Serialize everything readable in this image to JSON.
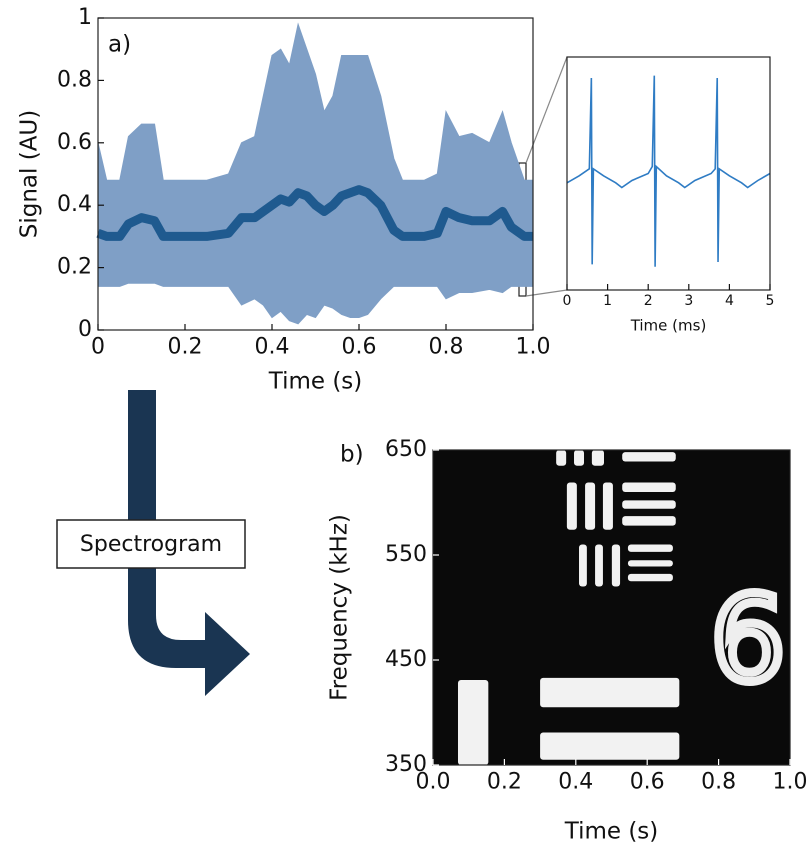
{
  "chart_data": [
    {
      "type": "area",
      "annotation": "a)",
      "xlabel": "Time (s)",
      "ylabel": "Signal (AU)",
      "color": "#1f5a8f",
      "band_color": "#7f9fc6",
      "x": [
        0,
        0.02,
        0.05,
        0.07,
        0.1,
        0.13,
        0.15,
        0.2,
        0.25,
        0.3,
        0.33,
        0.36,
        0.38,
        0.4,
        0.42,
        0.44,
        0.46,
        0.48,
        0.5,
        0.52,
        0.54,
        0.56,
        0.58,
        0.6,
        0.62,
        0.65,
        0.68,
        0.7,
        0.75,
        0.78,
        0.8,
        0.83,
        0.86,
        0.9,
        0.93,
        0.95,
        0.98,
        1.0
      ],
      "upper_values": [
        0.6,
        0.48,
        0.48,
        0.62,
        0.66,
        0.66,
        0.48,
        0.48,
        0.48,
        0.5,
        0.6,
        0.62,
        0.75,
        0.88,
        0.9,
        0.85,
        0.98,
        0.9,
        0.82,
        0.7,
        0.75,
        0.88,
        0.88,
        0.88,
        0.88,
        0.75,
        0.55,
        0.48,
        0.48,
        0.5,
        0.7,
        0.62,
        0.63,
        0.6,
        0.7,
        0.6,
        0.48,
        0.48
      ],
      "lower_values": [
        0.14,
        0.14,
        0.14,
        0.15,
        0.15,
        0.15,
        0.14,
        0.14,
        0.14,
        0.14,
        0.08,
        0.1,
        0.08,
        0.04,
        0.06,
        0.03,
        0.02,
        0.05,
        0.04,
        0.08,
        0.07,
        0.05,
        0.04,
        0.04,
        0.05,
        0.1,
        0.14,
        0.14,
        0.14,
        0.14,
        0.1,
        0.12,
        0.12,
        0.13,
        0.12,
        0.14,
        0.14,
        0.14
      ],
      "values": [
        0.31,
        0.3,
        0.3,
        0.34,
        0.36,
        0.35,
        0.3,
        0.3,
        0.3,
        0.31,
        0.36,
        0.36,
        0.38,
        0.4,
        0.42,
        0.41,
        0.44,
        0.43,
        0.4,
        0.38,
        0.4,
        0.43,
        0.44,
        0.45,
        0.44,
        0.4,
        0.32,
        0.3,
        0.3,
        0.31,
        0.38,
        0.36,
        0.35,
        0.35,
        0.38,
        0.33,
        0.3,
        0.3
      ],
      "xlim": [
        0,
        1
      ],
      "xticks": [
        0,
        0.2,
        0.4,
        0.6,
        0.8,
        {
          "value": 1,
          "label": "1.0"
        }
      ],
      "ylim": [
        0,
        1
      ],
      "yticks": [
        0,
        0.2,
        0.4,
        0.6,
        0.8,
        1
      ]
    },
    {
      "type": "line",
      "xlabel": "Time (ms)",
      "color": "#2f7cc4",
      "x": [
        0,
        0.3,
        0.55,
        0.6,
        0.62,
        0.65,
        0.9,
        1.2,
        1.35,
        1.6,
        2.0,
        2.1,
        2.15,
        2.17,
        2.2,
        2.45,
        2.75,
        2.9,
        3.15,
        3.55,
        3.65,
        3.7,
        3.72,
        3.75,
        4.0,
        4.3,
        4.45,
        4.7,
        5
      ],
      "values": [
        0.46,
        0.49,
        0.52,
        0.91,
        0.11,
        0.52,
        0.49,
        0.46,
        0.44,
        0.47,
        0.5,
        0.53,
        0.92,
        0.1,
        0.53,
        0.49,
        0.46,
        0.44,
        0.47,
        0.5,
        0.52,
        0.91,
        0.12,
        0.52,
        0.49,
        0.46,
        0.44,
        0.47,
        0.5
      ],
      "xlim": [
        0,
        5
      ],
      "xticks": [
        0,
        1,
        2,
        3,
        4,
        5
      ],
      "ylim": [
        0,
        1
      ]
    },
    {
      "type": "image",
      "annotation": "b)",
      "xlabel": "Time (s)",
      "ylabel": "Frequency (kHz)",
      "symbol": "6",
      "background": "#0a0a0a",
      "color": "#f2f2f2",
      "shapes": [
        {
          "x": [
            0.07,
            0.155
          ],
          "y": [
            350,
            431
          ]
        },
        {
          "x": [
            0.3,
            0.69
          ],
          "y": [
            405,
            433
          ]
        },
        {
          "x": [
            0.3,
            0.69
          ],
          "y": [
            355,
            381
          ]
        },
        {
          "x": [
            0.345,
            0.373
          ],
          "y": [
            635,
            650
          ]
        },
        {
          "x": [
            0.395,
            0.423
          ],
          "y": [
            635,
            650
          ]
        },
        {
          "x": [
            0.445,
            0.479
          ],
          "y": [
            635,
            650
          ]
        },
        {
          "x": [
            0.53,
            0.68
          ],
          "y": [
            639,
            648
          ]
        },
        {
          "x": [
            0.53,
            0.68
          ],
          "y": [
            610,
            619
          ]
        },
        {
          "x": [
            0.53,
            0.68
          ],
          "y": [
            594,
            602
          ]
        },
        {
          "x": [
            0.53,
            0.68
          ],
          "y": [
            578,
            587
          ]
        },
        {
          "x": [
            0.375,
            0.403
          ],
          "y": [
            574,
            619
          ]
        },
        {
          "x": [
            0.426,
            0.454
          ],
          "y": [
            574,
            619
          ]
        },
        {
          "x": [
            0.476,
            0.504
          ],
          "y": [
            574,
            619
          ]
        },
        {
          "x": [
            0.409,
            0.431
          ],
          "y": [
            520,
            560
          ]
        },
        {
          "x": [
            0.454,
            0.476
          ],
          "y": [
            520,
            560
          ]
        },
        {
          "x": [
            0.501,
            0.524
          ],
          "y": [
            520,
            560
          ]
        },
        {
          "x": [
            0.546,
            0.672
          ],
          "y": [
            553,
            560
          ]
        },
        {
          "x": [
            0.546,
            0.672
          ],
          "y": [
            539,
            545
          ]
        },
        {
          "x": [
            0.546,
            0.672
          ],
          "y": [
            525,
            532
          ]
        }
      ],
      "xlim": [
        0,
        1
      ],
      "xticks": [
        {
          "value": 0,
          "label": "0.0"
        },
        0.2,
        0.4,
        0.6,
        0.8,
        {
          "value": 1,
          "label": "1.0"
        }
      ],
      "ylim": [
        350,
        650
      ],
      "yticks": [
        350,
        450,
        550,
        650
      ]
    }
  ],
  "flow_label": "Spectrogram"
}
